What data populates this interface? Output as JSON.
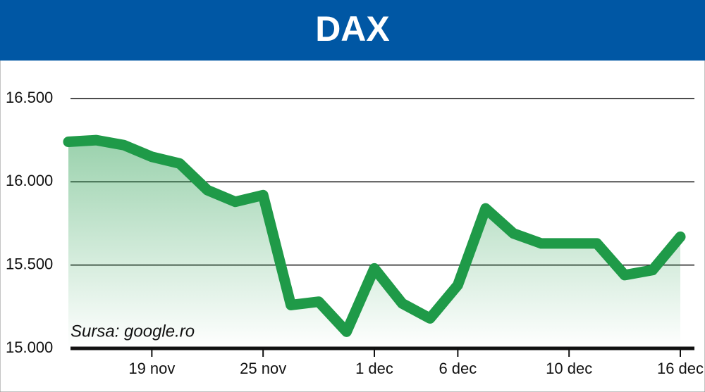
{
  "chart_data": {
    "type": "line",
    "title": "DAX",
    "annotation": "Sursa: google.ro",
    "categories": [
      null,
      null,
      null,
      "19 nov",
      null,
      null,
      null,
      "25 nov",
      null,
      null,
      null,
      "1 dec",
      null,
      null,
      "6 dec",
      null,
      null,
      null,
      "10 dec",
      null,
      null,
      null,
      "16 dec"
    ],
    "series": [
      {
        "name": "DAX",
        "color": "#1f9a48",
        "values": [
          16240,
          16250,
          16220,
          16150,
          16110,
          15950,
          15880,
          15920,
          15260,
          15280,
          15100,
          15480,
          15270,
          15180,
          15380,
          15840,
          15690,
          15630,
          15630,
          15630,
          15440,
          15470,
          15670
        ]
      }
    ],
    "ylim": [
      15000,
      16500
    ],
    "yticks": [
      {
        "value": 15000,
        "label": "15.000"
      },
      {
        "value": 15500,
        "label": "15.500"
      },
      {
        "value": 16000,
        "label": "16.000"
      },
      {
        "value": 16500,
        "label": "16.500"
      }
    ],
    "grid": true
  }
}
